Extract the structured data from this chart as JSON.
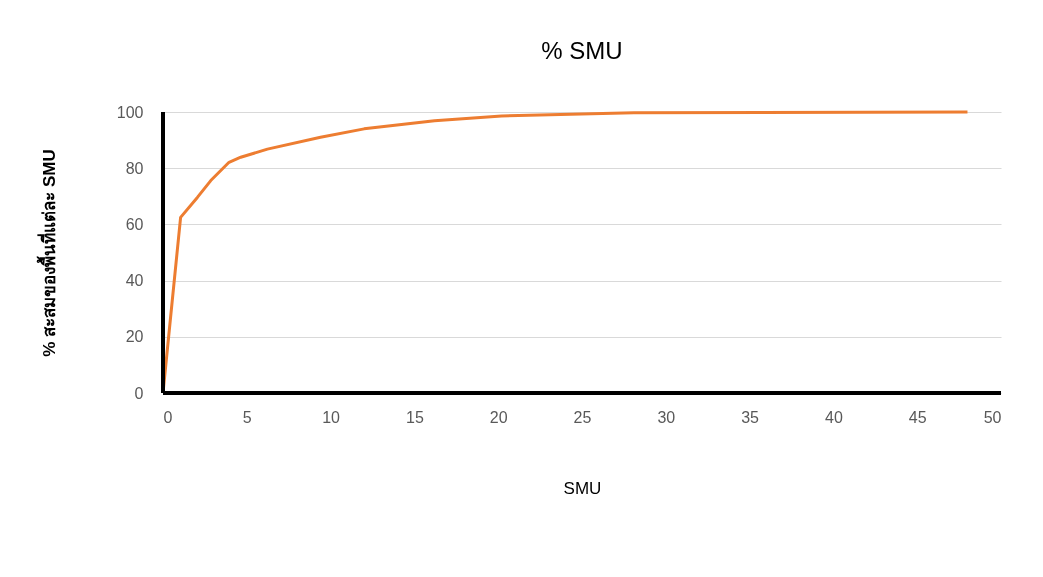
{
  "chart_data": {
    "type": "line",
    "title": "% SMU",
    "xlabel": "SMU",
    "ylabel": "% สะสมของพื้นที่แต่ละ SMU",
    "series": [
      {
        "color": "#ed7d31",
        "x": [
          0,
          1.05,
          2.05,
          2.85,
          3.94,
          4.64,
          6.23,
          9.4,
          12,
          16.2,
          20.2,
          28.1,
          48
        ],
        "values": [
          0,
          62.5,
          69.6,
          75.6,
          82.1,
          83.9,
          86.8,
          91,
          94,
          96.9,
          98.6,
          99.7,
          100
        ]
      }
    ],
    "xlim": [
      0,
      50
    ],
    "xticks": [
      0,
      5,
      10,
      15,
      20,
      25,
      30,
      35,
      40,
      45,
      50
    ],
    "ylim": [
      0,
      100
    ],
    "yticks": [
      0,
      20,
      40,
      60,
      80,
      100
    ],
    "grid": "y",
    "marker": "none",
    "line_style": "solid"
  }
}
